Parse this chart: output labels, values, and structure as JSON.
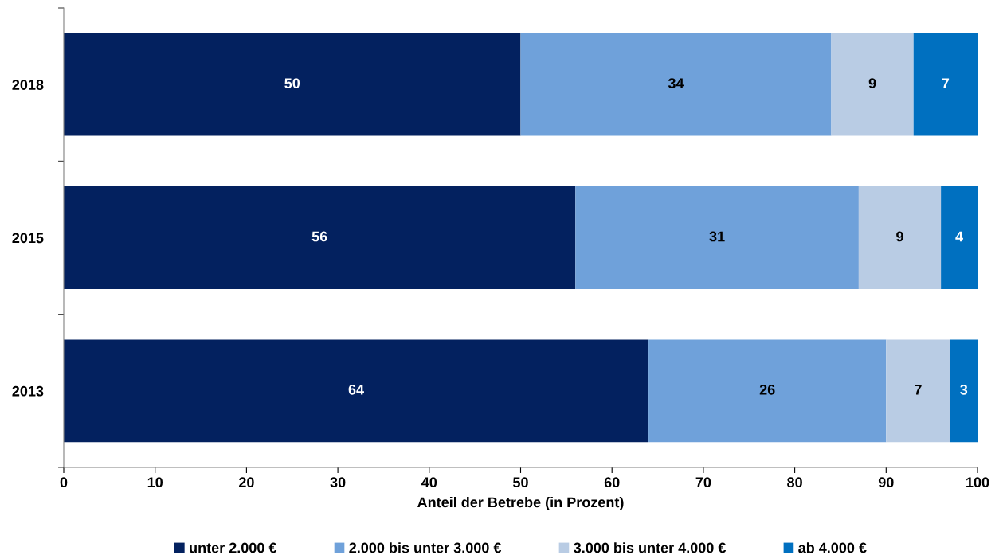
{
  "chart_data": {
    "type": "bar",
    "orientation": "horizontal",
    "stacked": true,
    "categories": [
      "2018",
      "2015",
      "2013"
    ],
    "series": [
      {
        "name": "unter 2.000 €",
        "color": "#03215f",
        "values": [
          50,
          56,
          64
        ]
      },
      {
        "name": "2.000 bis unter 3.000 €",
        "color": "#6fa1da",
        "values": [
          34,
          31,
          26
        ]
      },
      {
        "name": "3.000 bis unter 4.000 €",
        "color": "#b9cce4",
        "values": [
          9,
          9,
          7
        ]
      },
      {
        "name": "ab 4.000 €",
        "color": "#0070c0",
        "values": [
          7,
          4,
          3
        ]
      }
    ],
    "xlabel": "Anteil der Betrebe (in Prozent)",
    "xlim": [
      0,
      100
    ],
    "xticks": [
      0,
      10,
      20,
      30,
      40,
      50,
      60,
      70,
      80,
      90,
      100
    ],
    "data_labels": true,
    "legend": "bottom",
    "grid": false
  }
}
